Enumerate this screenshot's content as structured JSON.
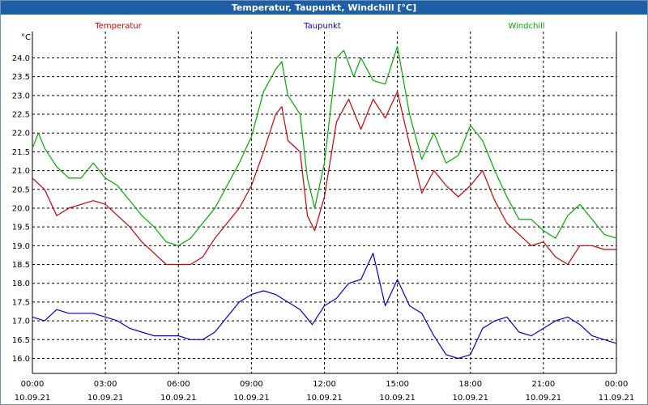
{
  "title": "Temperatur, Taupunkt, Windchill [°C]",
  "chart_data": {
    "type": "line",
    "yunit": "°C",
    "ylim": [
      15.6,
      24.7
    ],
    "yticks": [
      "16.0",
      "16.5",
      "17.0",
      "17.5",
      "18.0",
      "18.5",
      "19.0",
      "19.5",
      "20.0",
      "20.5",
      "21.0",
      "21.5",
      "22.0",
      "22.5",
      "23.0",
      "23.5",
      "24.0"
    ],
    "xticks": [
      {
        "time": "00:00",
        "date": "10.09.21"
      },
      {
        "time": "03:00",
        "date": "10.09.21"
      },
      {
        "time": "06:00",
        "date": "10.09.21"
      },
      {
        "time": "09:00",
        "date": "10.09.21"
      },
      {
        "time": "12:00",
        "date": "10.09.21"
      },
      {
        "time": "15:00",
        "date": "10.09.21"
      },
      {
        "time": "18:00",
        "date": "10.09.21"
      },
      {
        "time": "21:00",
        "date": "10.09.21"
      },
      {
        "time": "00:00",
        "date": "11.09.21"
      }
    ],
    "xlim_hours": [
      0,
      24
    ],
    "grid": true,
    "series": [
      {
        "name": "Temperatur",
        "color": "#cc0000",
        "x": [
          0,
          0.5,
          1,
          1.5,
          2,
          2.5,
          3,
          3.5,
          4,
          4.5,
          5,
          5.5,
          6,
          6.5,
          7,
          7.5,
          8,
          8.5,
          9,
          9.5,
          10,
          10.25,
          10.5,
          11,
          11.3,
          11.6,
          12,
          12.5,
          13,
          13.5,
          14,
          14.5,
          15,
          15.5,
          16,
          16.5,
          17,
          17.5,
          18,
          18.5,
          19,
          19.5,
          20,
          20.5,
          21,
          21.5,
          22,
          22.5,
          23,
          23.5,
          24
        ],
        "y": [
          20.8,
          20.5,
          19.8,
          20.0,
          20.1,
          20.2,
          20.1,
          19.8,
          19.5,
          19.1,
          18.8,
          18.5,
          18.5,
          18.5,
          18.7,
          19.2,
          19.6,
          20.0,
          20.6,
          21.5,
          22.5,
          22.7,
          21.8,
          21.5,
          19.8,
          19.4,
          20.3,
          22.3,
          22.9,
          22.1,
          22.9,
          22.4,
          23.1,
          21.7,
          20.4,
          21.0,
          20.6,
          20.3,
          20.6,
          21.0,
          20.2,
          19.6,
          19.3,
          19.0,
          19.1,
          18.7,
          18.5,
          19.0,
          19.0,
          18.9,
          18.9
        ]
      },
      {
        "name": "Taupunkt",
        "color": "#0000cc",
        "x": [
          0,
          0.5,
          1,
          1.5,
          2,
          2.5,
          3,
          3.5,
          4,
          4.5,
          5,
          5.5,
          6,
          6.5,
          7,
          7.5,
          8,
          8.5,
          9,
          9.5,
          10,
          10.5,
          11,
          11.5,
          12,
          12.5,
          13,
          13.5,
          14,
          14.5,
          15,
          15.5,
          16,
          16.5,
          17,
          17.5,
          18,
          18.5,
          19,
          19.5,
          20,
          20.5,
          21,
          21.5,
          22,
          22.5,
          23,
          23.5,
          24
        ],
        "y": [
          17.1,
          17.0,
          17.3,
          17.2,
          17.2,
          17.2,
          17.1,
          17.0,
          16.8,
          16.7,
          16.6,
          16.6,
          16.6,
          16.5,
          16.5,
          16.7,
          17.1,
          17.5,
          17.7,
          17.8,
          17.7,
          17.5,
          17.3,
          16.9,
          17.4,
          17.6,
          18.0,
          18.1,
          18.8,
          17.4,
          18.1,
          17.4,
          17.2,
          16.6,
          16.1,
          16.0,
          16.1,
          16.8,
          17.0,
          17.1,
          16.7,
          16.6,
          16.8,
          17.0,
          17.1,
          16.9,
          16.6,
          16.5,
          16.4
        ]
      },
      {
        "name": "Windchill",
        "color": "#00aa00",
        "x": [
          0,
          0.25,
          0.5,
          1,
          1.5,
          2,
          2.5,
          3,
          3.5,
          4,
          4.5,
          5,
          5.5,
          6,
          6.5,
          7,
          7.5,
          8,
          8.5,
          9,
          9.5,
          10,
          10.25,
          10.5,
          11,
          11.3,
          11.6,
          12,
          12.5,
          12.8,
          13.2,
          13.5,
          14,
          14.5,
          15,
          15.5,
          16,
          16.5,
          17,
          17.5,
          18,
          18.5,
          19,
          19.5,
          20,
          20.5,
          21,
          21.5,
          22,
          22.5,
          23,
          23.5,
          24
        ],
        "y": [
          21.6,
          22.0,
          21.6,
          21.1,
          20.8,
          20.8,
          21.2,
          20.8,
          20.6,
          20.2,
          19.8,
          19.5,
          19.1,
          19.0,
          19.2,
          19.6,
          20.0,
          20.6,
          21.2,
          21.9,
          23.1,
          23.7,
          23.9,
          23.0,
          22.5,
          20.8,
          20.0,
          21.2,
          24.0,
          24.2,
          23.5,
          24.0,
          23.4,
          23.3,
          24.3,
          22.5,
          21.3,
          22.0,
          21.2,
          21.4,
          22.2,
          21.8,
          21.0,
          20.3,
          19.7,
          19.7,
          19.4,
          19.2,
          19.8,
          20.1,
          19.7,
          19.3,
          19.2
        ]
      }
    ]
  }
}
